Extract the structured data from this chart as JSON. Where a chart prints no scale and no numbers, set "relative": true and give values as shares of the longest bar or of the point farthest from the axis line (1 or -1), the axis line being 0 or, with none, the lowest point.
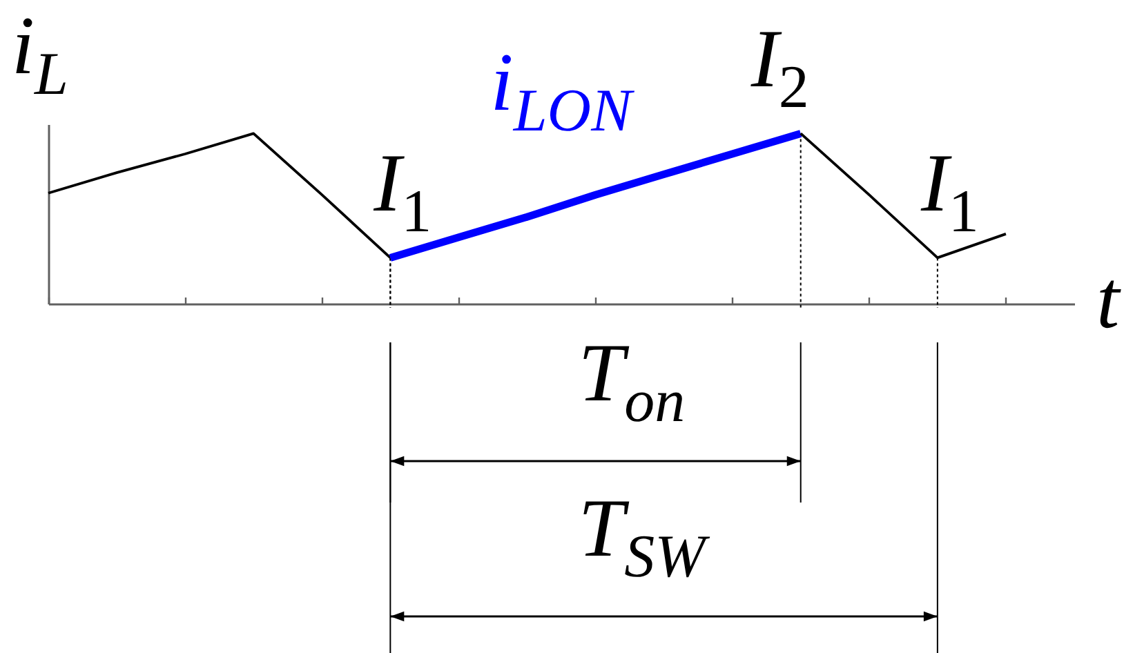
{
  "chart_data": {
    "type": "line",
    "relative": true,
    "xlabel": "t",
    "ylabel": "i$_{L}$",
    "categories": [
      null,
      null,
      null,
      null,
      null,
      null,
      null,
      null,
      null,
      null,
      null,
      null,
      null,
      null,
      null,
      null
    ],
    "series": [
      {
        "color": "#000000",
        "values": [
          0.65,
          0.77,
          0.88,
          1,
          0.64,
          0.27,
          null,
          null,
          null,
          null,
          null,
          null,
          null,
          null,
          null,
          null
        ]
      },
      {
        "name": "i$_{LON}$",
        "color": "#0000ff",
        "values": [
          null,
          null,
          null,
          null,
          null,
          0.27,
          0.39,
          0.51,
          0.64,
          0.76,
          0.88,
          1,
          null,
          null,
          null,
          null
        ]
      },
      {
        "color": "#000000",
        "values": [
          null,
          null,
          null,
          null,
          null,
          null,
          null,
          null,
          null,
          null,
          null,
          1,
          0.64,
          0.27,
          0.41,
          null
        ]
      }
    ],
    "annotations": [
      {
        "text": "I$_{1}$",
        "y": 0.27
      },
      {
        "text": "I$_{2}$",
        "y": 1
      },
      {
        "text": "I$_{1}$",
        "y": 0.27
      },
      "T$_{on}$",
      "T$_{SW}$"
    ]
  }
}
